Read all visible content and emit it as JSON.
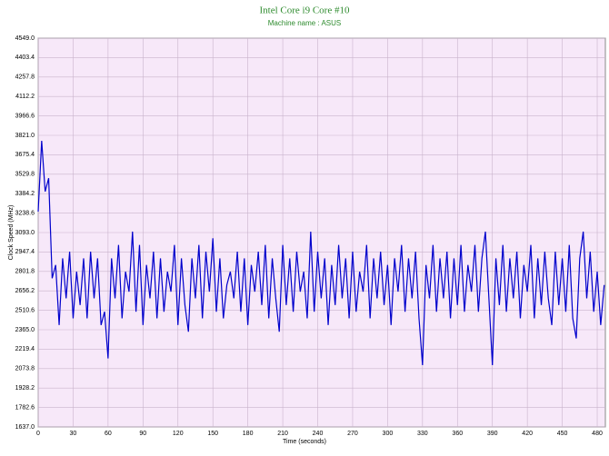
{
  "chart_data": {
    "type": "line",
    "title": "Intel Core i9 Core #10",
    "subtitle": "Machine name : ASUS",
    "x_label": "Time (seconds)",
    "y_label": "Clock Speed (MHz)",
    "grid": true,
    "xlim": [
      0,
      487
    ],
    "ylim": [
      1637.0,
      4549.0
    ],
    "xticks": [
      0,
      30,
      60,
      90,
      120,
      150,
      180,
      210,
      240,
      270,
      300,
      330,
      360,
      390,
      420,
      450,
      480
    ],
    "yticks": [
      {
        "value": 1637.0,
        "label": "1637.0"
      },
      1782.6,
      1928.2,
      2073.8,
      2219.4,
      {
        "value": 2365.0,
        "label": "2365.0"
      },
      2510.6,
      2656.2,
      2801.8,
      2947.4,
      {
        "value": 3093.0,
        "label": "3093.0"
      },
      3238.6,
      3384.2,
      3529.8,
      3675.4,
      {
        "value": 3821.0,
        "label": "3821.0"
      },
      3966.6,
      4112.2,
      4257.8,
      4403.4,
      {
        "value": 4549.0,
        "label": "4549.0"
      }
    ],
    "x": [
      0,
      3,
      6,
      9,
      12,
      15,
      18,
      21,
      24,
      27,
      30,
      33,
      36,
      39,
      42,
      45,
      48,
      51,
      54,
      57,
      60,
      63,
      66,
      69,
      72,
      75,
      78,
      81,
      84,
      87,
      90,
      93,
      96,
      99,
      102,
      105,
      108,
      111,
      114,
      117,
      120,
      123,
      126,
      129,
      132,
      135,
      138,
      141,
      144,
      147,
      150,
      153,
      156,
      159,
      162,
      165,
      168,
      171,
      174,
      177,
      180,
      183,
      186,
      189,
      192,
      195,
      198,
      201,
      204,
      207,
      210,
      213,
      216,
      219,
      222,
      225,
      228,
      231,
      234,
      237,
      240,
      243,
      246,
      249,
      252,
      255,
      258,
      261,
      264,
      267,
      270,
      273,
      276,
      279,
      282,
      285,
      288,
      291,
      294,
      297,
      300,
      303,
      306,
      309,
      312,
      315,
      318,
      321,
      324,
      327,
      330,
      333,
      336,
      339,
      342,
      345,
      348,
      351,
      354,
      357,
      360,
      363,
      366,
      369,
      372,
      375,
      378,
      381,
      384,
      387,
      390,
      393,
      396,
      399,
      402,
      405,
      408,
      411,
      414,
      417,
      420,
      423,
      426,
      429,
      432,
      435,
      438,
      441,
      444,
      447,
      450,
      453,
      456,
      459,
      462,
      465,
      468,
      471,
      474,
      477,
      480,
      483,
      486
    ],
    "series": [
      {
        "name": "Clock Speed",
        "color": "#0000cc",
        "values": [
          3250,
          3780,
          3400,
          3500,
          2750,
          2850,
          2400,
          2900,
          2600,
          2950,
          2450,
          2800,
          2550,
          2900,
          2450,
          2950,
          2600,
          2900,
          2400,
          2500,
          2150,
          2900,
          2600,
          3000,
          2450,
          2800,
          2650,
          3100,
          2500,
          3000,
          2400,
          2850,
          2600,
          2950,
          2450,
          2900,
          2500,
          2800,
          2650,
          3000,
          2400,
          2900,
          2550,
          2350,
          2900,
          2600,
          3000,
          2450,
          2950,
          2650,
          3050,
          2500,
          2900,
          2450,
          2700,
          2800,
          2600,
          2950,
          2500,
          2900,
          2400,
          2850,
          2650,
          2950,
          2550,
          3000,
          2450,
          2900,
          2600,
          2350,
          3000,
          2550,
          2900,
          2500,
          2950,
          2650,
          2800,
          2450,
          3100,
          2500,
          2950,
          2600,
          2900,
          2400,
          2850,
          2550,
          3000,
          2600,
          2900,
          2450,
          2950,
          2500,
          2800,
          2650,
          3000,
          2450,
          2900,
          2600,
          2950,
          2550,
          2850,
          2400,
          2900,
          2650,
          3000,
          2500,
          2900,
          2600,
          2950,
          2450,
          2100,
          2850,
          2600,
          3000,
          2500,
          2900,
          2600,
          2950,
          2450,
          2900,
          2550,
          3000,
          2500,
          2850,
          2650,
          3000,
          2500,
          2900,
          3100,
          2600,
          2100,
          2900,
          2550,
          3000,
          2500,
          2900,
          2600,
          2950,
          2450,
          2850,
          2650,
          3000,
          2450,
          2900,
          2550,
          2950,
          2600,
          2400,
          2950,
          2550,
          2900,
          2500,
          3000,
          2450,
          2300,
          2900,
          3100,
          2600,
          2950,
          2500,
          2800,
          2400,
          2700
        ]
      }
    ]
  }
}
